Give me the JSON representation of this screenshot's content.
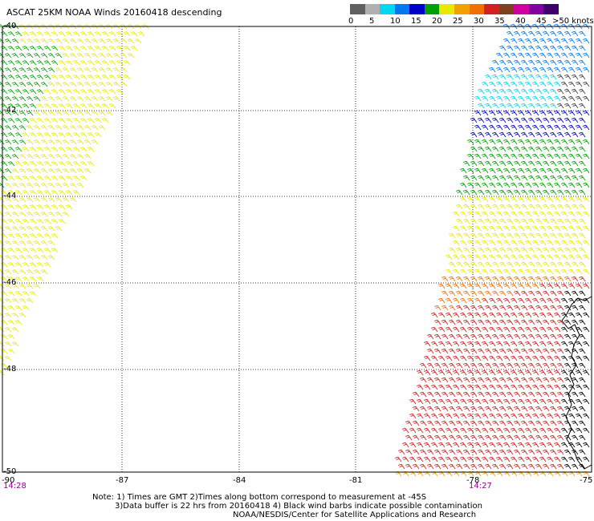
{
  "title": "ASCAT 25KM NOAA Winds 20160418 descending",
  "legend": {
    "colors": [
      "#606060",
      "#b0b0b0",
      "#00d8f0",
      "#0078f0",
      "#0000c8",
      "#00a000",
      "#e8e800",
      "#f0a000",
      "#f07000",
      "#d02020",
      "#804020",
      "#d000a0",
      "#8000a0",
      "#40006a"
    ],
    "labels": [
      "0",
      "5",
      "10",
      "15",
      "20",
      "25",
      "30",
      "35",
      "40",
      "45"
    ],
    "max_label": ">50 knots"
  },
  "axes": {
    "lat_labels": [
      "-40",
      "-42",
      "-44",
      "-46",
      "-48",
      "-50"
    ],
    "lon_labels": [
      "-90",
      "-87",
      "-84",
      "-81",
      "-78",
      "-75"
    ]
  },
  "time_labels": [
    "14:28",
    "14:27"
  ],
  "notes": [
    "Note: 1) Times are GMT 2)Times along bottom correspond to measurement at -45S",
    "3)Data buffer is 22 hrs from 20160418 4) Black wind barbs indicate possible contamination",
    "NOAA/NESDIS/Center for Satellite Applications and Research"
  ]
}
